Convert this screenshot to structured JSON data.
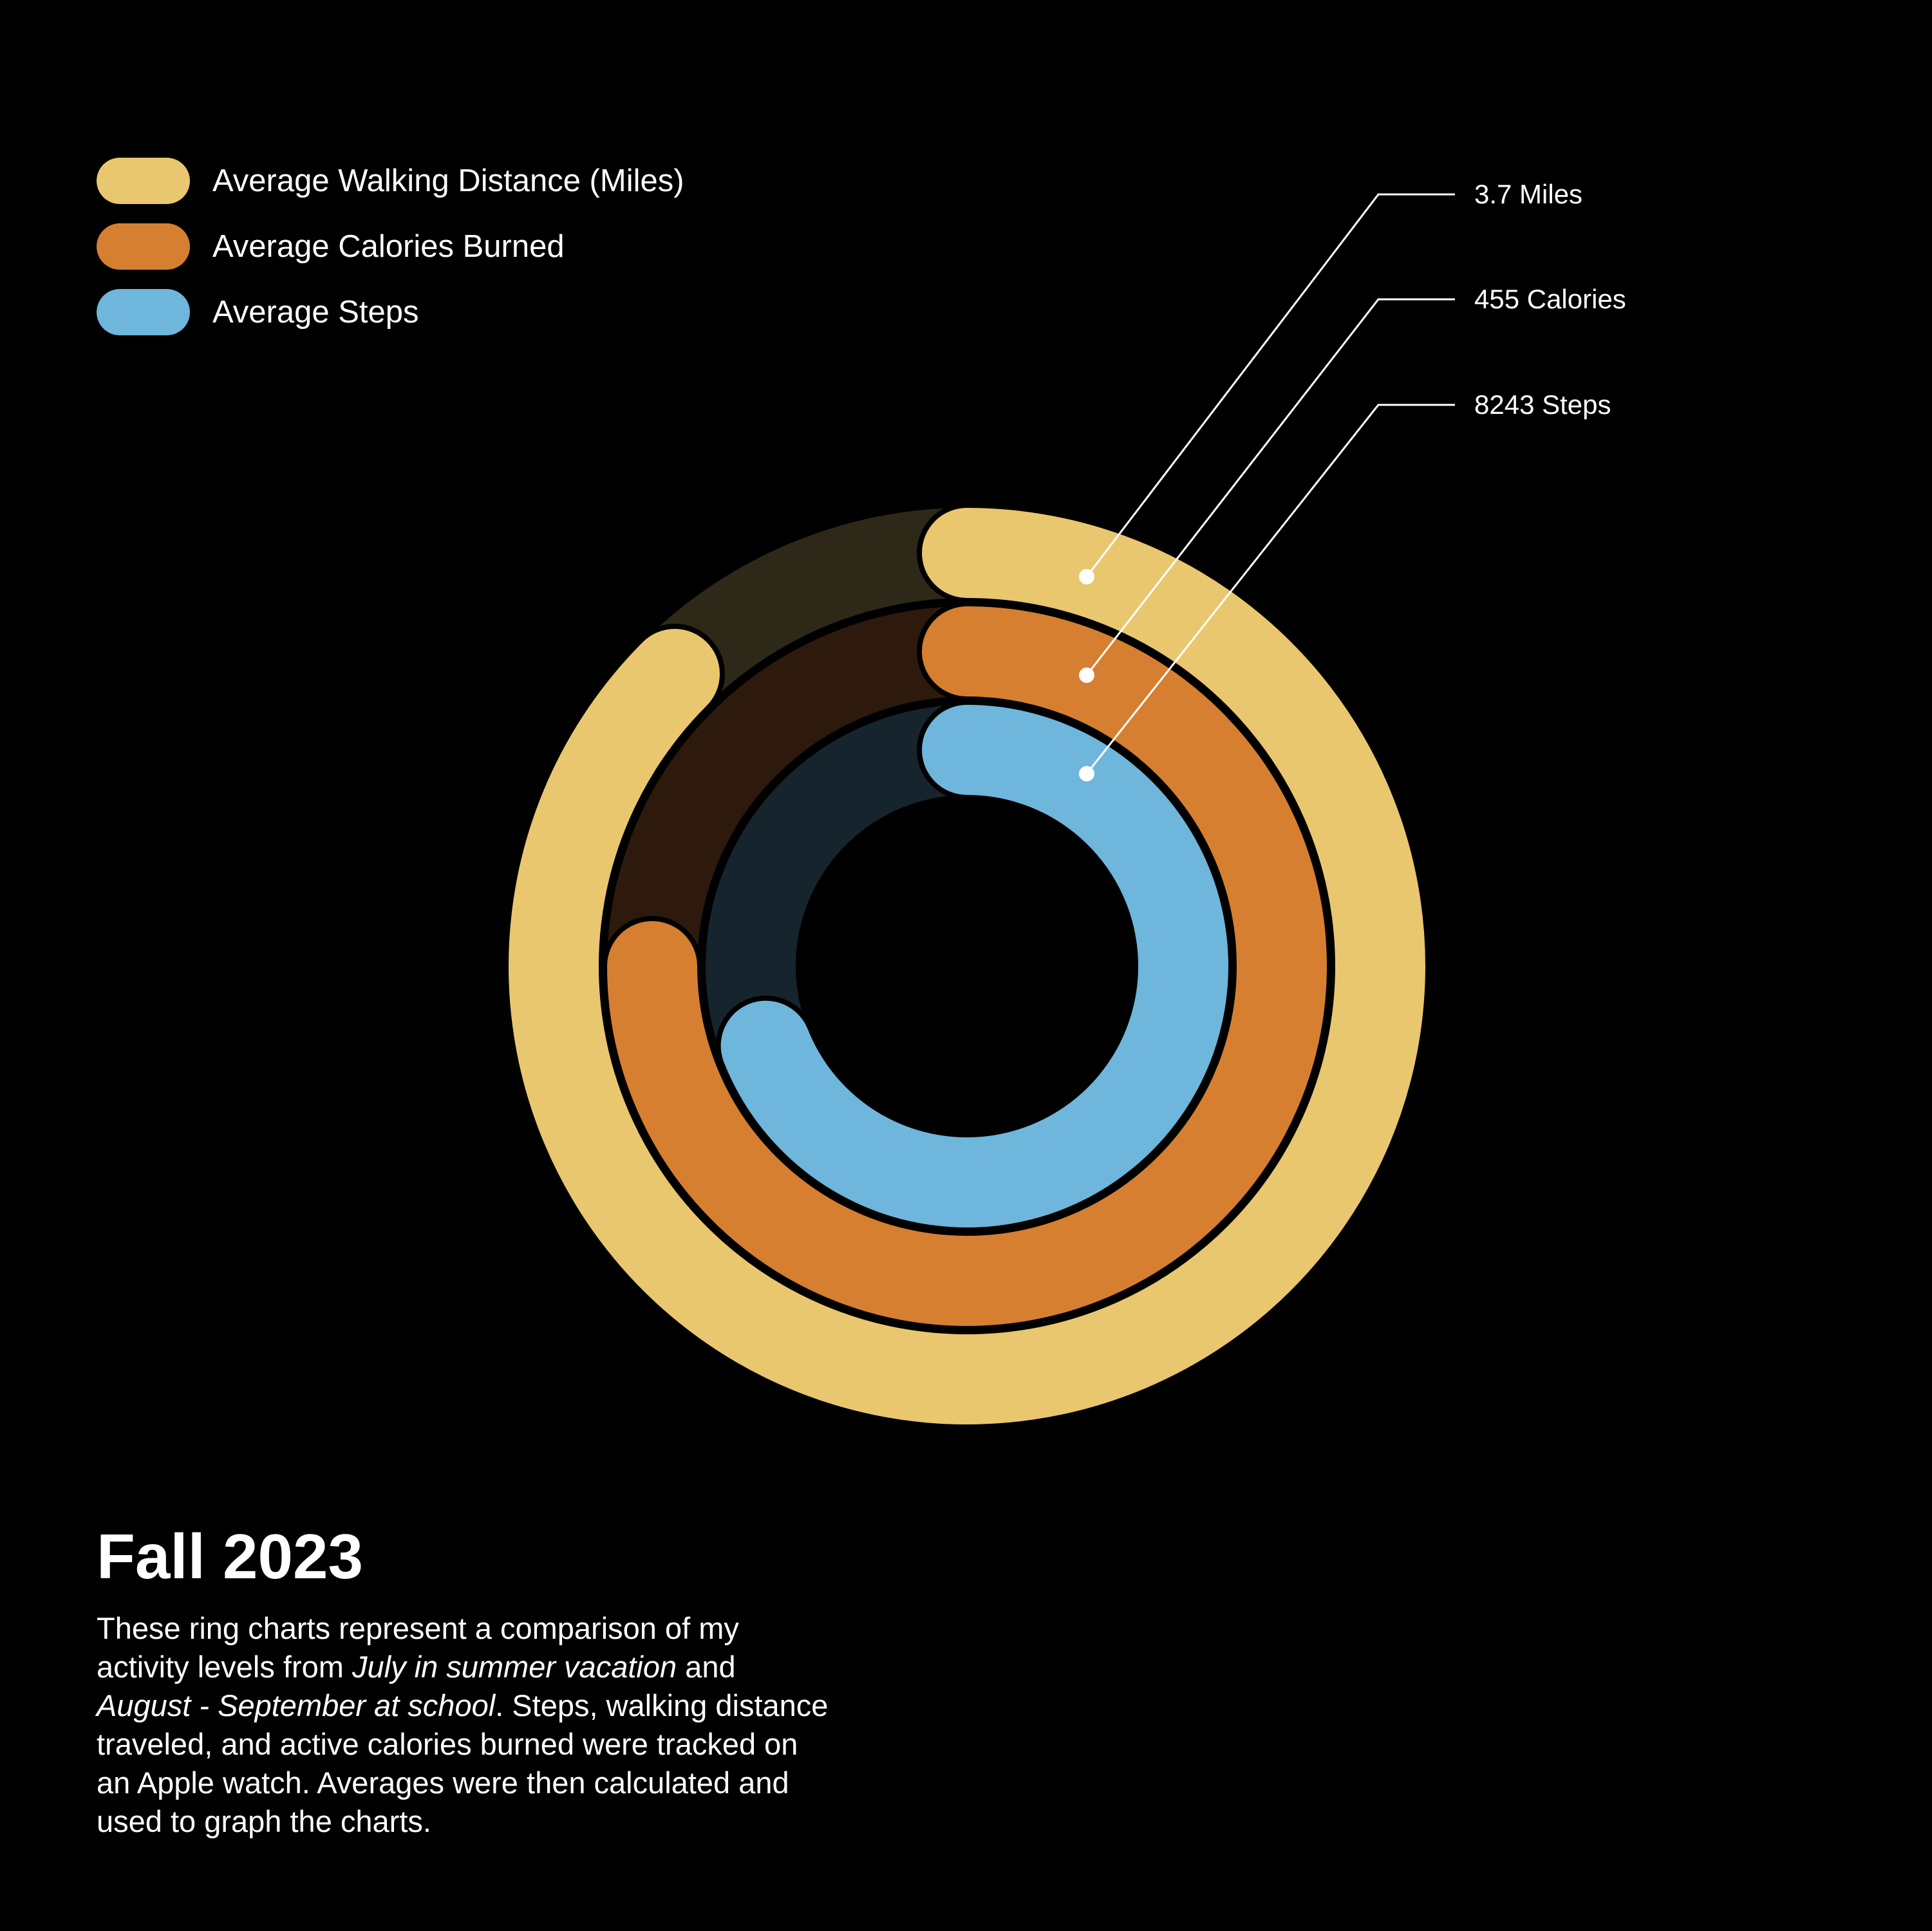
{
  "title": "Fall 2023",
  "description": {
    "p1": "These ring charts represent a comparison of my activity levels from ",
    "em1": "July in summer vacation",
    "p2": " and ",
    "em2": "August - September at school",
    "p3": ". Steps, walking distance traveled, and active calories burned were tracked on an Apple watch. Averages were then calculated and used to graph the charts."
  },
  "legend": [
    {
      "label": "Average Walking Distance (Miles)",
      "color": "#E9C76F"
    },
    {
      "label": "Average Calories Burned",
      "color": "#D67F30"
    },
    {
      "label": "Average Steps",
      "color": "#6EB6DB"
    }
  ],
  "chart_data": {
    "type": "radial-bar",
    "title": "Fall 2023",
    "legend_position": "top-left",
    "series": [
      {
        "name": "Average Walking Distance (Miles)",
        "label": "3.7 Miles",
        "value": 3.7,
        "fraction": 0.875,
        "color": "#E9C76F",
        "track_color": "#2E2818"
      },
      {
        "name": "Average Calories Burned",
        "label": "455 Calories",
        "value": 455,
        "fraction": 0.75,
        "color": "#D67F30",
        "track_color": "#2D1A0C"
      },
      {
        "name": "Average Steps",
        "label": "8243 Steps",
        "value": 8243,
        "fraction": 0.69,
        "color": "#6EB6DB",
        "track_color": "#16242E"
      }
    ]
  }
}
